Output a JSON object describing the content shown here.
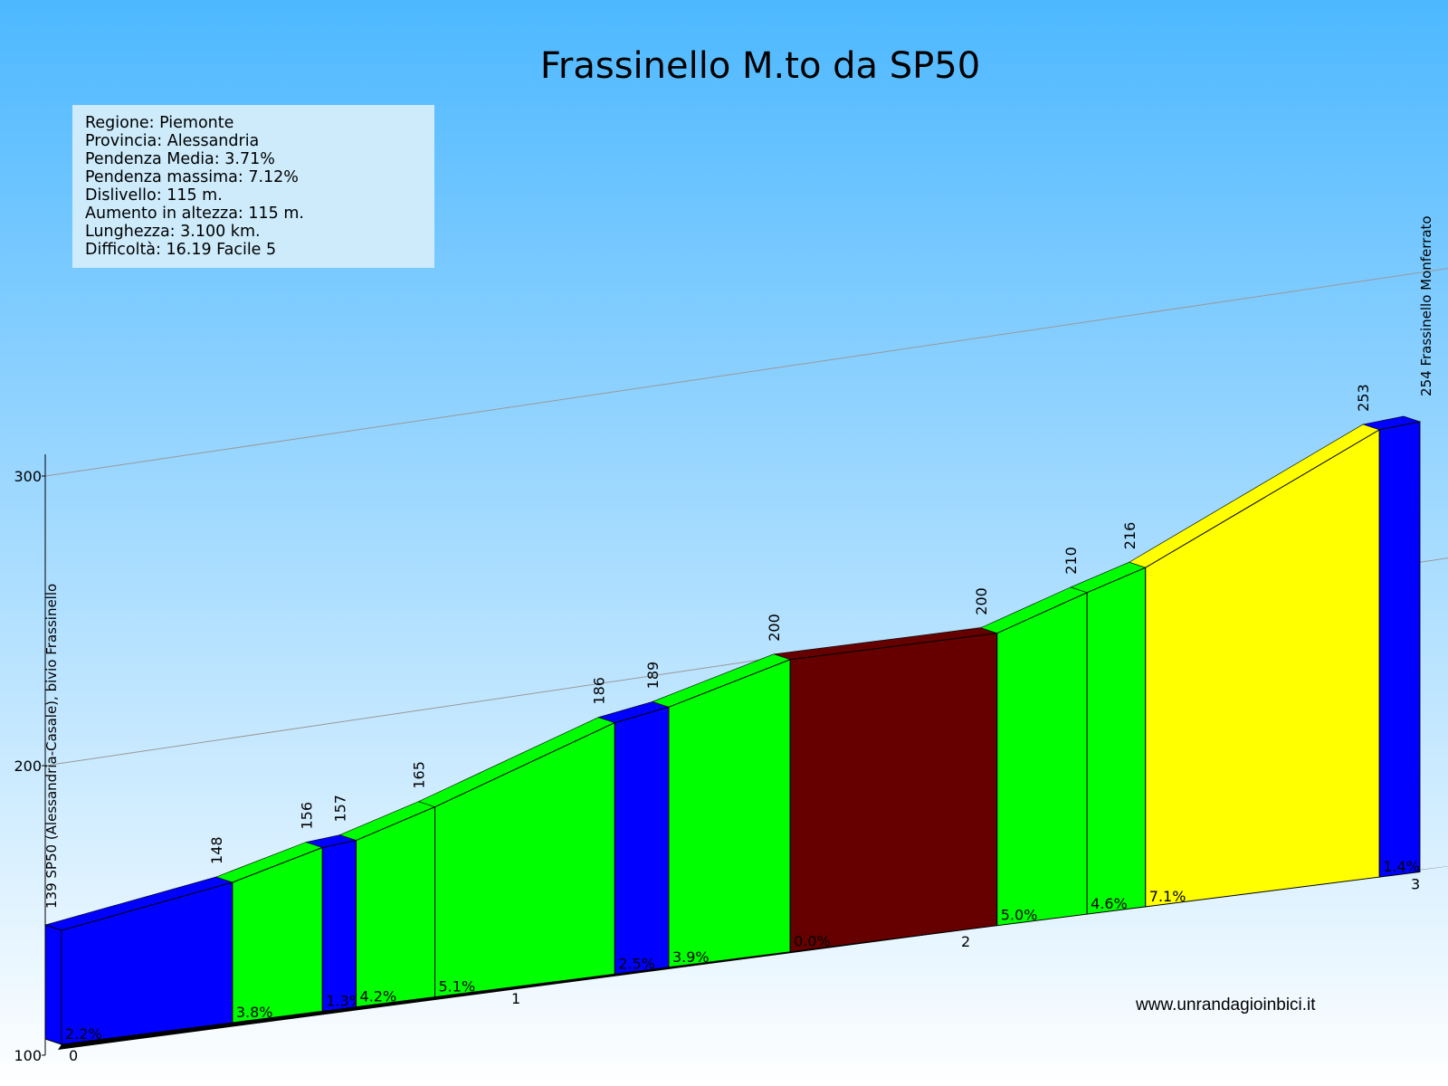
{
  "title": "Frassinello M.to da SP50",
  "info": [
    "Regione: Piemonte",
    "Provincia: Alessandria",
    "Pendenza Media: 3.71%",
    "Pendenza massima: 7.12%",
    "Dislivello:  115 m.",
    "Aumento in altezza:  115 m.",
    "Lunghezza:   3.100 km.",
    "Difficoltà: 16.19 Facile 5"
  ],
  "watermark": "www.unrandagioinbici.it",
  "colors": {
    "sky_top": "#4db8ff",
    "sky_bottom": "#ffffff",
    "blue": "#0000ff",
    "green": "#00ff00",
    "yellow": "#ffff00",
    "brown": "#660000",
    "gridline": "#999999"
  },
  "chart_data": {
    "type": "area",
    "title": "Frassinello M.to da SP50",
    "y_axis": {
      "ticks": [
        100,
        200,
        300
      ],
      "ylim": [
        100,
        300
      ]
    },
    "x_axis": {
      "ticks": [
        "0",
        "1",
        "2",
        "3"
      ]
    },
    "start_label": "139 SP50 (Alessandria-Casale), bivio Frassinello",
    "end_label": "254 Frassinello Monferrato",
    "points": [
      {
        "km": 0.0,
        "alt": 139,
        "label": ""
      },
      {
        "km": 0.38,
        "alt": 148,
        "label": "148"
      },
      {
        "km": 0.58,
        "alt": 156,
        "label": "156"
      },
      {
        "km": 0.655,
        "alt": 157,
        "label": "157"
      },
      {
        "km": 0.83,
        "alt": 165,
        "label": "165"
      },
      {
        "km": 1.23,
        "alt": 186,
        "label": "186"
      },
      {
        "km": 1.35,
        "alt": 189,
        "label": "189"
      },
      {
        "km": 1.62,
        "alt": 200,
        "label": "200"
      },
      {
        "km": 2.08,
        "alt": 200,
        "label": "200"
      },
      {
        "km": 2.28,
        "alt": 210,
        "label": "210"
      },
      {
        "km": 2.41,
        "alt": 216,
        "label": "216"
      },
      {
        "km": 2.93,
        "alt": 253,
        "label": "253"
      },
      {
        "km": 3.02,
        "alt": 254,
        "label": ""
      }
    ],
    "segments": [
      {
        "grade": "2.2%",
        "color": "blue"
      },
      {
        "grade": "3.8%",
        "color": "green"
      },
      {
        "grade": "1.3%",
        "color": "blue"
      },
      {
        "grade": "4.2%",
        "color": "green"
      },
      {
        "grade": "5.1%",
        "color": "green"
      },
      {
        "grade": "2.5%",
        "color": "blue"
      },
      {
        "grade": "3.9%",
        "color": "green"
      },
      {
        "grade": "0.0%",
        "color": "brown"
      },
      {
        "grade": "5.0%",
        "color": "green"
      },
      {
        "grade": "4.6%",
        "color": "green"
      },
      {
        "grade": "7.1%",
        "color": "yellow"
      },
      {
        "grade": "1.4%",
        "color": "blue"
      }
    ]
  }
}
